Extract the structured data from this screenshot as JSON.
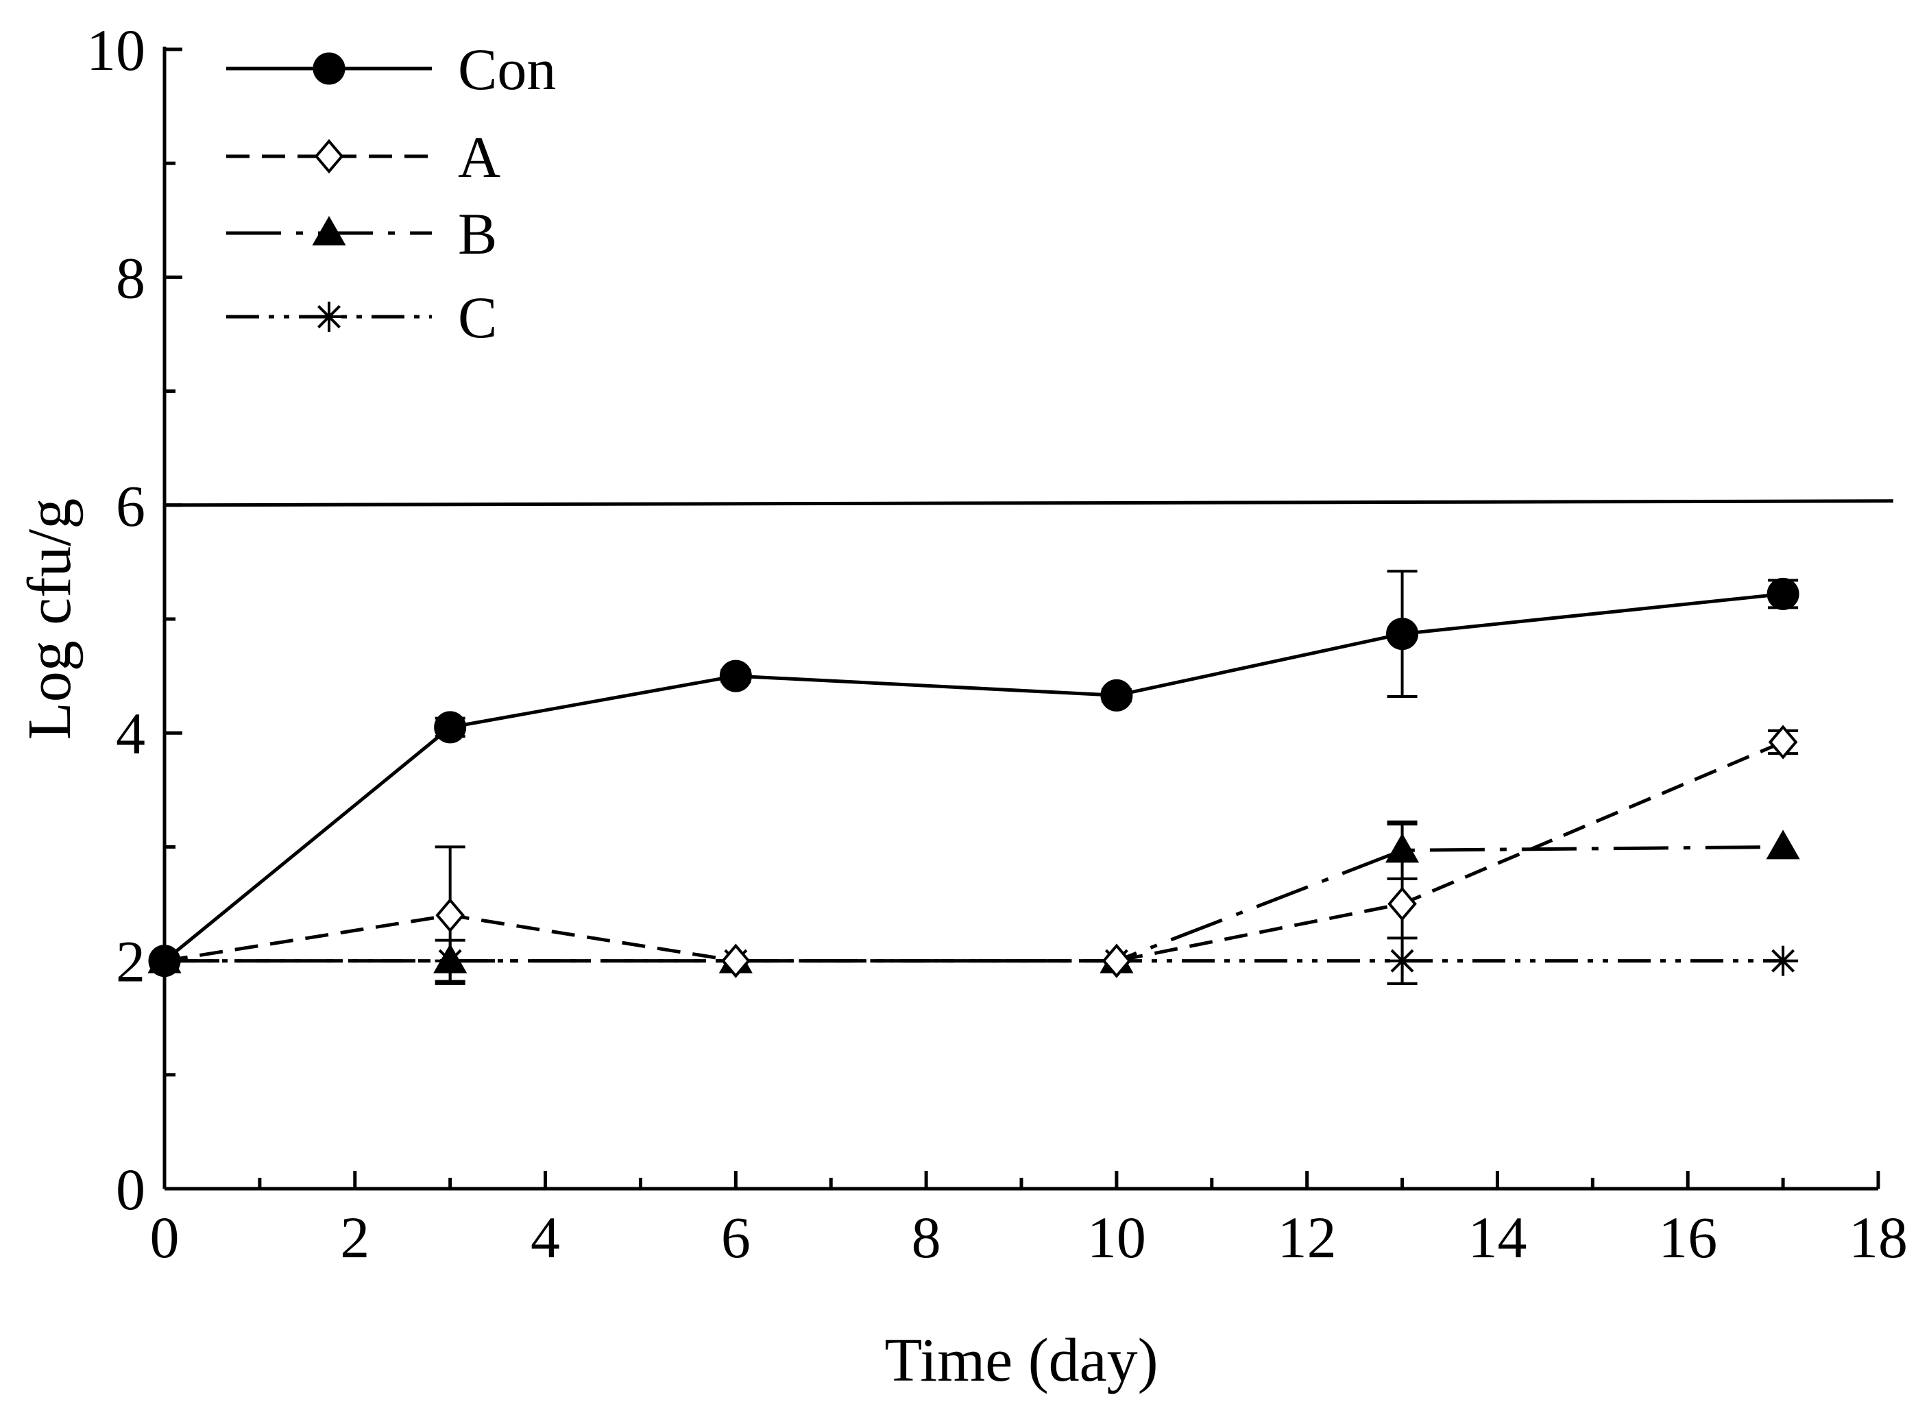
{
  "chart_data": {
    "type": "line",
    "title": "",
    "xlabel": "Time (day)",
    "ylabel": "Log cfu/g",
    "xlim": [
      0,
      18
    ],
    "ylim": [
      0,
      10
    ],
    "x_ticks": [
      0,
      2,
      4,
      6,
      8,
      10,
      12,
      14,
      16,
      18
    ],
    "y_ticks": [
      0,
      2,
      4,
      6,
      8,
      10
    ],
    "x_tick_labels": [
      "0",
      "2",
      "4",
      "6",
      "8",
      "10",
      "12",
      "14",
      "16",
      "18"
    ],
    "y_tick_labels": [
      "0",
      "2",
      "4",
      "6",
      "8",
      "10"
    ],
    "grid": false,
    "legend_position": "top-left",
    "reference_line": {
      "y": 6,
      "style": "solid"
    },
    "x": [
      0,
      3,
      6,
      10,
      13,
      17
    ],
    "series": [
      {
        "name": "Con",
        "line_style": "solid",
        "marker": "filled-circle",
        "values": [
          2.0,
          4.05,
          4.5,
          4.33,
          4.87,
          5.22
        ],
        "errors": [
          0,
          0.08,
          0.05,
          0.05,
          0.55,
          0.12
        ]
      },
      {
        "name": "A",
        "line_style": "dashed",
        "marker": "open-diamond",
        "values": [
          2.0,
          2.4,
          2.0,
          2.0,
          2.5,
          3.92
        ],
        "errors": [
          0,
          0.6,
          0,
          0,
          0.7,
          0.1
        ]
      },
      {
        "name": "B",
        "line_style": "long-dash-dot",
        "marker": "filled-triangle",
        "values": [
          2.0,
          2.0,
          2.0,
          2.0,
          2.97,
          3.0
        ],
        "errors": [
          0,
          0.18,
          0,
          0,
          0.25,
          0
        ]
      },
      {
        "name": "C",
        "line_style": "dash-dot-dot",
        "marker": "asterisk",
        "values": [
          2.0,
          2.0,
          2.0,
          2.0,
          2.0,
          2.0
        ],
        "errors": [
          0,
          0,
          0,
          0,
          0.2,
          0
        ]
      }
    ]
  }
}
